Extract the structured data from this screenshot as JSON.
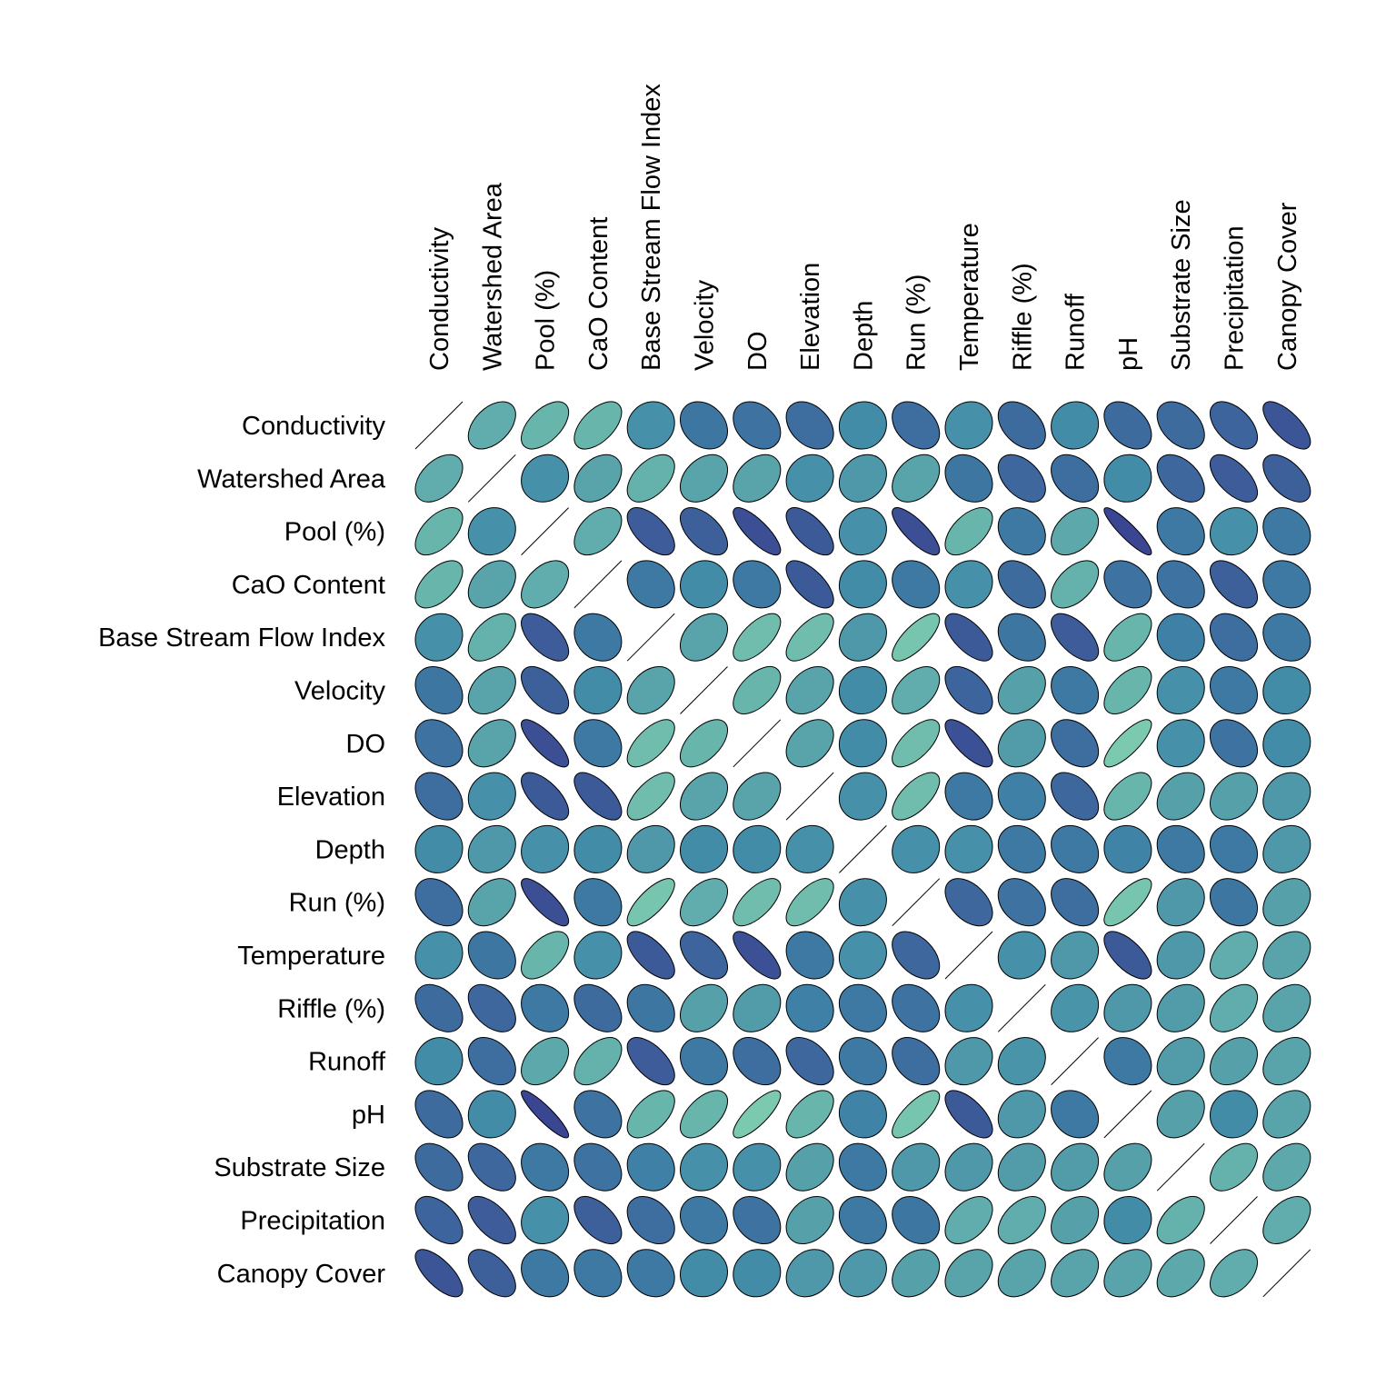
{
  "chart_data": {
    "type": "heatmap",
    "subtype": "correlation-ellipse-matrix",
    "variables": [
      "Conductivity",
      "Watershed Area",
      "Pool (%)",
      "CaO Content",
      "Base Stream Flow Index",
      "Velocity",
      "DO",
      "Elevation",
      "Depth",
      "Run (%)",
      "Temperature",
      "Riffle (%)",
      "Runoff",
      "pH",
      "Substrate Size",
      "Precipitation",
      "Canopy Cover"
    ],
    "lower_triangle": [
      [],
      [
        0.45
      ],
      [
        0.55,
        0.1
      ],
      [
        0.55,
        0.35,
        0.45
      ],
      [
        0.1,
        0.5,
        -0.6,
        -0.2
      ],
      [
        -0.25,
        0.35,
        -0.55,
        0.05,
        0.35
      ],
      [
        -0.3,
        0.35,
        -0.8,
        -0.2,
        0.65,
        0.55
      ],
      [
        -0.35,
        0.1,
        -0.65,
        -0.65,
        0.65,
        0.35,
        0.35
      ],
      [
        0.05,
        0.2,
        0.1,
        0.05,
        0.2,
        0.05,
        0.05,
        0.1
      ],
      [
        -0.35,
        0.35,
        -0.8,
        -0.2,
        0.75,
        0.45,
        0.65,
        0.65,
        0.1
      ],
      [
        0.1,
        -0.25,
        0.55,
        0.1,
        -0.65,
        -0.5,
        -0.75,
        -0.2,
        0.1,
        -0.45
      ],
      [
        -0.4,
        -0.45,
        -0.2,
        -0.4,
        -0.25,
        0.3,
        0.25,
        -0.1,
        -0.2,
        -0.3,
        0.1
      ],
      [
        0.05,
        -0.35,
        0.4,
        0.5,
        -0.6,
        -0.2,
        -0.35,
        -0.45,
        -0.2,
        -0.35,
        0.2,
        0.15
      ],
      [
        -0.4,
        0.05,
        -0.9,
        -0.3,
        0.55,
        0.55,
        0.8,
        0.55,
        -0.05,
        0.75,
        -0.65,
        0.2,
        -0.2
      ],
      [
        -0.4,
        -0.45,
        -0.2,
        -0.3,
        -0.1,
        0.1,
        0.1,
        0.3,
        -0.2,
        0.2,
        0.2,
        0.25,
        0.25,
        0.3
      ],
      [
        -0.5,
        -0.6,
        0.1,
        -0.55,
        -0.35,
        -0.2,
        -0.3,
        0.3,
        -0.2,
        -0.25,
        0.45,
        0.45,
        0.3,
        0.05,
        0.5
      ],
      [
        -0.7,
        -0.55,
        -0.2,
        -0.2,
        -0.2,
        0.05,
        0.05,
        0.2,
        0.2,
        0.3,
        0.35,
        0.35,
        0.35,
        0.35,
        0.4,
        0.45
      ]
    ],
    "colors": [
      "#3b3f8f",
      "#3f88a8",
      "#8ad9b0"
    ]
  }
}
